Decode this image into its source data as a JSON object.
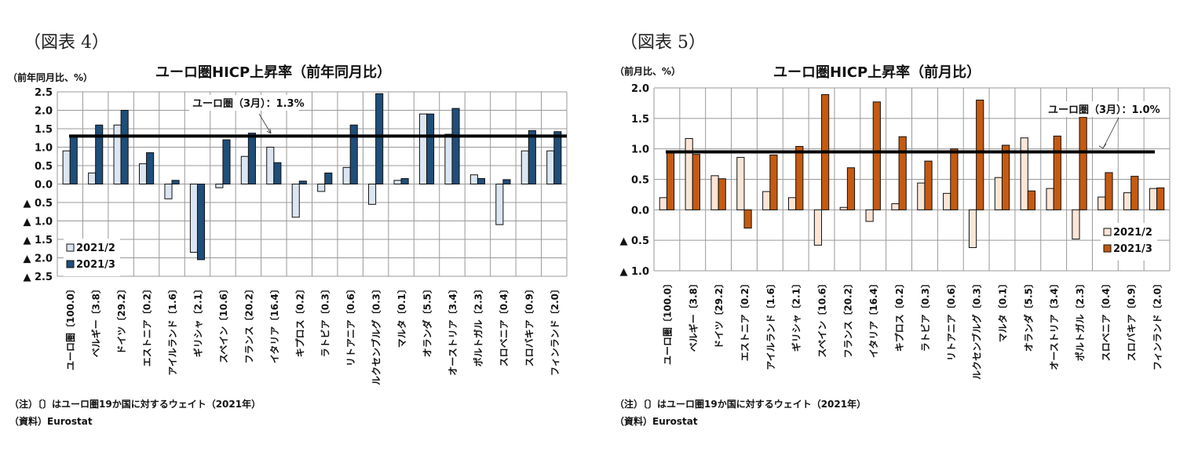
{
  "charts": [
    {
      "figure_label": "（図表 4）",
      "unit": "（前年同月比、%）",
      "title": "ユーロ圏HICP上昇率（前年同月比）",
      "note": "（注）〔〕はユーロ圏19か国に対するウェイト（2021年）",
      "source": "（資料）Eurostat"
    },
    {
      "figure_label": "（図表 5）",
      "unit": "（前月比、%）",
      "title": "ユーロ圏HICP上昇率（前月比）",
      "note": "（注）〔〕はユーロ圏19か国に対するウェイト（2021年）",
      "source": "（資料）Eurostat"
    }
  ],
  "chart_data": [
    {
      "type": "bar",
      "title": "ユーロ圏HICP上昇率（前年同月比）",
      "ylabel": "（前年同月比、%）",
      "ylim": [
        -2.5,
        2.5
      ],
      "grid": true,
      "legend": "bottom-left",
      "yticks": [
        2.5,
        2.0,
        1.5,
        1.0,
        0.5,
        0.0,
        -0.5,
        -1.0,
        -1.5,
        -2.0,
        -2.5
      ],
      "ytick_labels": [
        "2.5",
        "2.0",
        "1.5",
        "1.0",
        "0.5",
        "0.0",
        "▲ 0.5",
        "▲ 1.0",
        "▲ 1.5",
        "▲ 2.0",
        "▲ 2.5"
      ],
      "categories": [
        "ユーロ圏〔100.0〕",
        "ベルギー〔3.8〕",
        "ドイツ〔29.2〕",
        "エストニア〔0.2〕",
        "アイルランド〔1.6〕",
        "ギリシャ〔2.1〕",
        "スペイン〔10.6〕",
        "フランス〔20.2〕",
        "イタリア〔16.4〕",
        "キプロス〔0.2〕",
        "ラトビア〔0.3〕",
        "リトアニア〔0.6〕",
        "ルクセンブルグ〔0.3〕",
        "マルタ〔0.1〕",
        "オランダ〔5.5〕",
        "オーストリア〔3.4〕",
        "ポルトガル〔2.3〕",
        "スロベニア〔0.4〕",
        "スロバキア〔0.9〕",
        "フィンランド〔2.0〕"
      ],
      "series": [
        {
          "name": "2021/2",
          "color": "#dce6f2",
          "values": [
            0.9,
            0.3,
            1.6,
            0.55,
            -0.4,
            -1.85,
            -0.1,
            0.75,
            1.0,
            -0.9,
            -0.2,
            0.45,
            -0.55,
            0.1,
            1.9,
            1.35,
            0.25,
            -1.1,
            0.9,
            0.9
          ]
        },
        {
          "name": "2021/3",
          "color": "#1f4e79",
          "values": [
            1.3,
            1.6,
            2.0,
            0.85,
            0.1,
            -2.05,
            1.2,
            1.38,
            0.58,
            0.08,
            0.3,
            1.6,
            2.45,
            0.15,
            1.9,
            2.05,
            0.15,
            0.12,
            1.45,
            1.42
          ]
        }
      ],
      "reference_line": {
        "value": 1.3,
        "label": "ユーロ圏（3月）：1.3%"
      }
    },
    {
      "type": "bar",
      "title": "ユーロ圏HICP上昇率（前月比）",
      "ylabel": "（前月比、%）",
      "ylim": [
        -1.0,
        2.0
      ],
      "grid": true,
      "legend": "bottom-right",
      "yticks": [
        2.0,
        1.5,
        1.0,
        0.5,
        0.0,
        -0.5,
        -1.0
      ],
      "ytick_labels": [
        "2.0",
        "1.5",
        "1.0",
        "0.5",
        "0.0",
        "▲ 0.5",
        "▲ 1.0"
      ],
      "categories": [
        "ユーロ圏〔100.0〕",
        "ベルギー〔3.8〕",
        "ドイツ〔29.2〕",
        "エストニア〔0.2〕",
        "アイルランド〔1.6〕",
        "ギリシャ〔2.1〕",
        "スペイン〔10.6〕",
        "フランス〔20.2〕",
        "イタリア〔16.4〕",
        "キプロス〔0.2〕",
        "ラトビア〔0.3〕",
        "リトアニア〔0.6〕",
        "ルクセンブルグ〔0.3〕",
        "マルタ〔0.1〕",
        "オランダ〔5.5〕",
        "オーストリア〔3.4〕",
        "ポルトガル〔2.3〕",
        "スロベニア〔0.4〕",
        "スロバキア〔0.9〕",
        "フィンランド〔2.0〕"
      ],
      "series": [
        {
          "name": "2021/2",
          "color": "#fbe5d6",
          "values": [
            0.2,
            1.17,
            0.56,
            0.86,
            0.3,
            0.2,
            -0.58,
            0.04,
            -0.19,
            0.1,
            0.44,
            0.27,
            -0.62,
            0.53,
            1.18,
            0.35,
            -0.48,
            0.21,
            0.28,
            0.35
          ]
        },
        {
          "name": "2021/3",
          "color": "#c55a11",
          "values": [
            0.95,
            0.91,
            0.51,
            -0.3,
            0.9,
            1.04,
            1.89,
            0.69,
            1.77,
            1.2,
            0.8,
            1.0,
            1.8,
            1.06,
            0.31,
            1.21,
            1.52,
            0.61,
            0.55,
            0.36
          ]
        }
      ],
      "reference_line": {
        "value": 0.95,
        "label": "ユーロ圏（3月）：1.0%"
      }
    }
  ]
}
